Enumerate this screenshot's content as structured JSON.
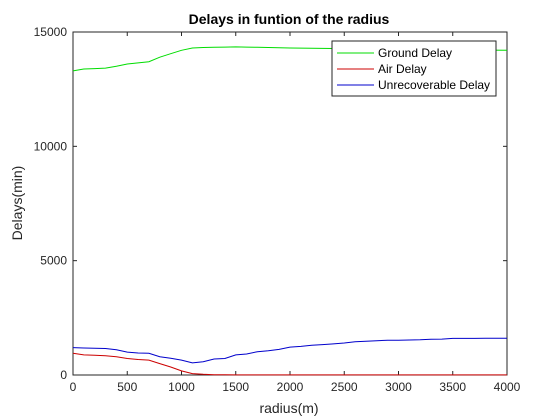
{
  "chart_data": {
    "type": "line",
    "title": "Delays in funtion of the radius",
    "xlabel": "radius(m)",
    "ylabel": "Delays(min)",
    "xlim": [
      0,
      4000
    ],
    "ylim": [
      0,
      15000
    ],
    "xticks": [
      0,
      500,
      1000,
      1500,
      2000,
      2500,
      3000,
      3500,
      4000
    ],
    "yticks": [
      0,
      5000,
      10000,
      15000
    ],
    "grid": false,
    "legend_position": "top-right",
    "series": [
      {
        "name": "Ground Delay",
        "color": "#00dd00",
        "x": [
          0,
          100,
          200,
          300,
          400,
          500,
          600,
          700,
          800,
          900,
          1000,
          1100,
          1200,
          1300,
          1400,
          1500,
          1600,
          1700,
          1800,
          1900,
          2000,
          2200,
          2400,
          2600,
          2800,
          3000,
          3200,
          3400,
          3600,
          3800,
          4000
        ],
        "y": [
          13300,
          13380,
          13400,
          13420,
          13500,
          13600,
          13650,
          13700,
          13900,
          14050,
          14200,
          14300,
          14320,
          14330,
          14340,
          14350,
          14340,
          14330,
          14320,
          14310,
          14300,
          14290,
          14280,
          14270,
          14260,
          14250,
          14240,
          14230,
          14220,
          14210,
          14200
        ]
      },
      {
        "name": "Air Delay",
        "color": "#cc0000",
        "x": [
          0,
          100,
          200,
          300,
          400,
          500,
          600,
          700,
          800,
          900,
          1000,
          1100,
          1200,
          1300,
          1400,
          1500,
          2000,
          2500,
          3000,
          3500,
          4000
        ],
        "y": [
          950,
          880,
          860,
          840,
          800,
          720,
          680,
          650,
          500,
          350,
          180,
          60,
          30,
          15,
          10,
          5,
          5,
          5,
          5,
          5,
          5
        ]
      },
      {
        "name": "Unrecoverable Delay",
        "color": "#0000cc",
        "x": [
          0,
          100,
          200,
          300,
          400,
          500,
          600,
          700,
          800,
          900,
          1000,
          1100,
          1200,
          1300,
          1400,
          1500,
          1600,
          1700,
          1800,
          1900,
          2000,
          2100,
          2200,
          2300,
          2400,
          2500,
          2600,
          2700,
          2800,
          2900,
          3000,
          3100,
          3200,
          3300,
          3400,
          3500,
          3600,
          3700,
          3800,
          3900,
          4000
        ],
        "y": [
          1200,
          1180,
          1170,
          1160,
          1100,
          1000,
          960,
          950,
          800,
          730,
          650,
          530,
          580,
          700,
          720,
          880,
          920,
          1020,
          1060,
          1120,
          1220,
          1250,
          1300,
          1330,
          1360,
          1400,
          1450,
          1480,
          1500,
          1520,
          1520,
          1530,
          1540,
          1560,
          1570,
          1600,
          1600,
          1600,
          1610,
          1610,
          1610
        ]
      }
    ]
  }
}
